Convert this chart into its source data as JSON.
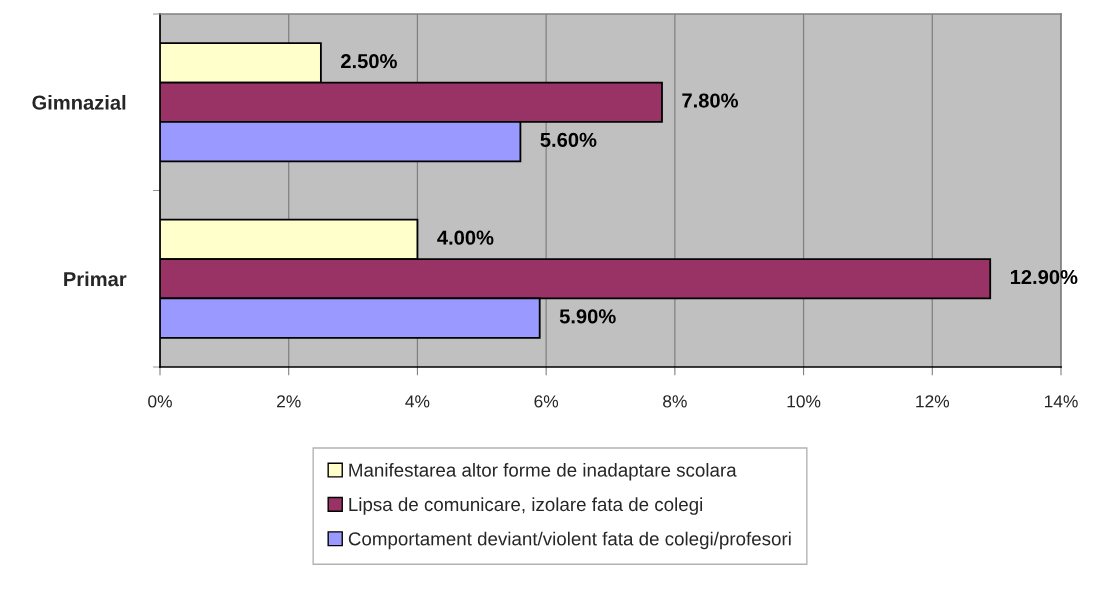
{
  "chart_data": {
    "type": "bar",
    "orientation": "horizontal",
    "categories": [
      "Gimnazial",
      "Primar"
    ],
    "series": [
      {
        "name": "Manifestarea altor forme de inadaptare scolara",
        "color": "#ffffcc",
        "values": [
          2.5,
          4.0
        ],
        "value_labels": [
          "2.50%",
          "4.00%"
        ]
      },
      {
        "name": "Lipsa de comunicare, izolare fata de colegi",
        "color": "#993366",
        "values": [
          7.8,
          12.9
        ],
        "value_labels": [
          "7.80%",
          "12.90%"
        ]
      },
      {
        "name": "Comportament deviant/violent fata de colegi/profesori",
        "color": "#9999ff",
        "values": [
          5.6,
          5.9
        ],
        "value_labels": [
          "5.60%",
          "5.90%"
        ]
      }
    ],
    "xlim": [
      0,
      14
    ],
    "xticks": [
      {
        "value": 0,
        "label": "0%"
      },
      {
        "value": 2,
        "label": "2%"
      },
      {
        "value": 4,
        "label": "4%"
      },
      {
        "value": 6,
        "label": "6%"
      },
      {
        "value": 8,
        "label": "8%"
      },
      {
        "value": 10,
        "label": "10%"
      },
      {
        "value": 12,
        "label": "12%"
      },
      {
        "value": 14,
        "label": "14%"
      }
    ],
    "grid": "x",
    "legend": "bottom"
  }
}
